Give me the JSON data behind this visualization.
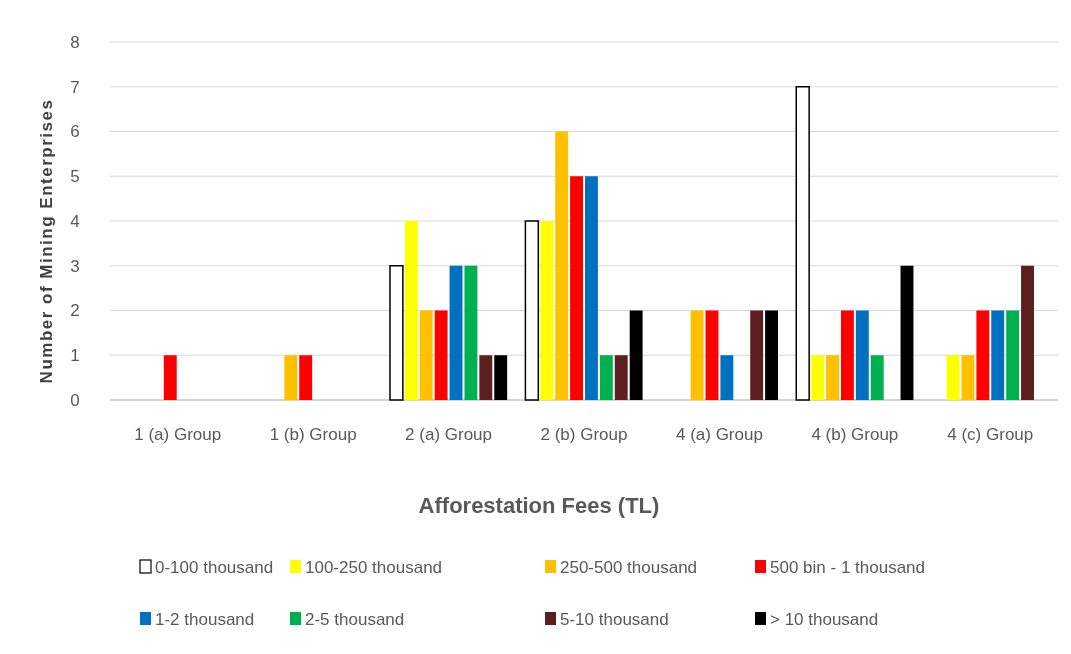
{
  "chart_data": {
    "type": "bar",
    "xlabel": "Afforestation Fees (TL)",
    "ylabel": "Number of Mining Enterprises",
    "categories": [
      "1 (a) Group",
      "1 (b) Group",
      "2 (a) Group",
      "2 (b) Group",
      "4 (a) Group",
      "4 (b) Group",
      "4 (c) Group"
    ],
    "series": [
      {
        "name": "0-100 thousand",
        "color": "#ffffff",
        "values": [
          0,
          0,
          3,
          4,
          0,
          7,
          0
        ]
      },
      {
        "name": "100-250 thousand",
        "color": "#ffff00",
        "values": [
          0,
          0,
          4,
          4,
          0,
          1,
          1
        ]
      },
      {
        "name": "250-500 thousand",
        "color": "#ffc000",
        "values": [
          0,
          1,
          2,
          6,
          2,
          1,
          1
        ]
      },
      {
        "name": "500 bin - 1 thousand",
        "color": "#ff0000",
        "values": [
          1,
          1,
          2,
          5,
          2,
          2,
          2
        ]
      },
      {
        "name": "1-2 thousand",
        "color": "#0070c0",
        "values": [
          0,
          0,
          3,
          5,
          1,
          2,
          2
        ]
      },
      {
        "name": "2-5 thousand",
        "color": "#00b050",
        "values": [
          0,
          0,
          3,
          1,
          0,
          1,
          2
        ]
      },
      {
        "name": "5-10 thousand",
        "color": "#5c1f1f",
        "values": [
          0,
          0,
          1,
          1,
          2,
          0,
          3
        ]
      },
      {
        "name": "> 10 thousand",
        "color": "#000000",
        "values": [
          0,
          0,
          1,
          2,
          2,
          3,
          0
        ]
      }
    ],
    "ylim": [
      0,
      8
    ],
    "yticks": [
      0,
      1,
      2,
      3,
      4,
      5,
      6,
      7,
      8
    ],
    "grid": "y",
    "legend": "bottom"
  }
}
